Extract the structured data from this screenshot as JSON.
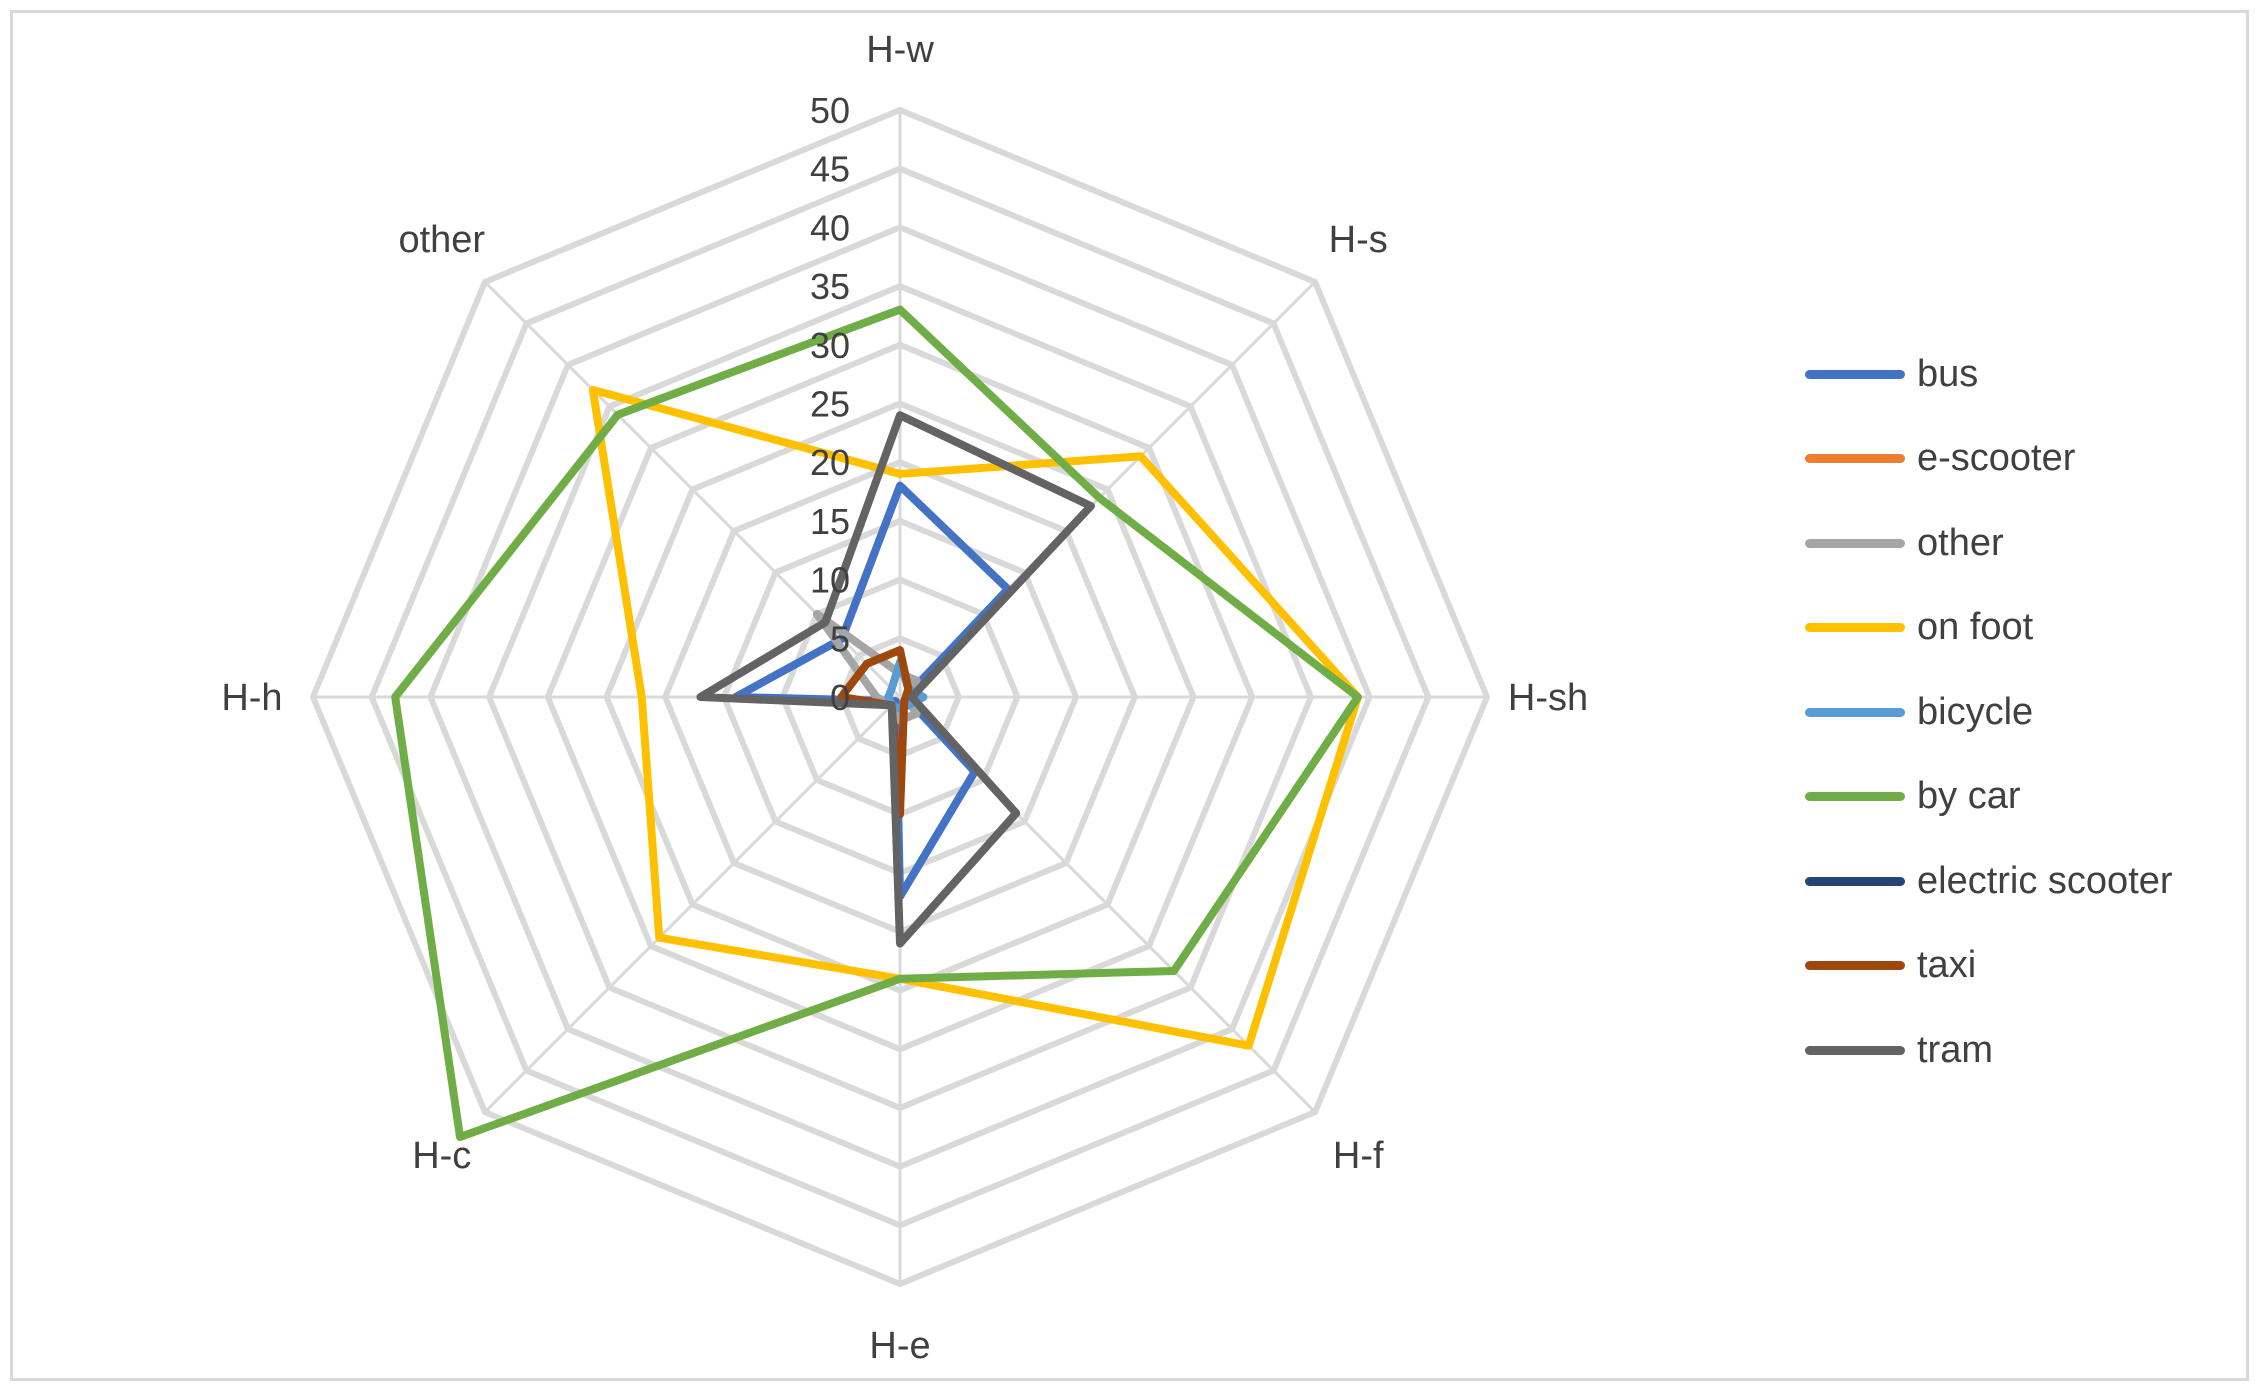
{
  "chart_data": {
    "type": "radar",
    "axes": [
      "H-w",
      "H-s",
      "H-sh",
      "H-f",
      "H-e",
      "H-c",
      "H-h",
      "other"
    ],
    "r_ticks": [
      0,
      5,
      10,
      15,
      20,
      25,
      30,
      35,
      40,
      45,
      50
    ],
    "r_range": [
      0,
      50
    ],
    "grid": true,
    "legend_position": "right",
    "series": [
      {
        "name": "bus",
        "color": "#4472C4",
        "values": [
          18,
          13,
          0.5,
          9,
          17,
          0.5,
          14,
          7
        ]
      },
      {
        "name": "e-scooter",
        "color": "#ED7D31",
        "values": [
          0,
          0,
          0,
          0,
          0,
          0,
          0,
          0
        ]
      },
      {
        "name": "other",
        "color": "#A5A5A5",
        "values": [
          2,
          2,
          0.5,
          2,
          2,
          1,
          2,
          10
        ]
      },
      {
        "name": "on foot",
        "color": "#FFC000",
        "values": [
          19,
          29,
          39,
          42,
          24,
          29,
          22,
          37
        ]
      },
      {
        "name": "bicycle",
        "color": "#5B9BD5",
        "values": [
          3,
          1,
          2,
          1,
          1,
          1,
          1,
          1
        ]
      },
      {
        "name": "by car",
        "color": "#70AD47",
        "values": [
          33,
          24,
          39,
          33,
          24,
          53,
          43,
          34
        ]
      },
      {
        "name": "electric scooter",
        "color": "#264478",
        "values": [
          0,
          0,
          0,
          0,
          0,
          0,
          0,
          0
        ]
      },
      {
        "name": "taxi",
        "color": "#9E480E",
        "values": [
          4,
          1,
          0.5,
          0.5,
          10,
          1,
          5,
          4
        ]
      },
      {
        "name": "tram",
        "color": "#636363",
        "values": [
          24,
          23,
          1,
          14,
          21,
          1,
          17,
          9
        ]
      }
    ]
  },
  "colors": {
    "grid": "#d9d9d9",
    "text": "#404040",
    "frame": "#d9d9d9"
  }
}
